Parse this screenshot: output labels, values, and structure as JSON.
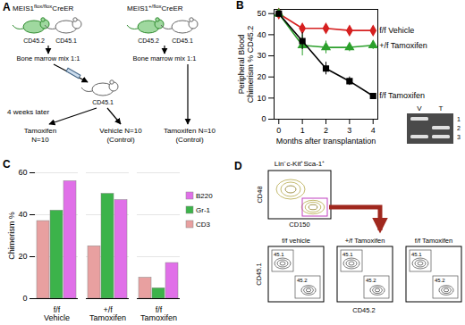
{
  "chart_data": [
    {
      "type": "line",
      "title": "B",
      "ylabel": "Peripheral Blood Chimerism % CD45.2",
      "xlabel": "Months after transplantation",
      "x": [
        0,
        1,
        2,
        3,
        4
      ],
      "xlim": [
        -0.2,
        4.2
      ],
      "xticks": [
        0,
        1,
        2,
        3,
        4
      ],
      "ylim": [
        0,
        52
      ],
      "yticks": [
        0,
        10,
        20,
        30,
        40,
        50
      ],
      "legend": "right",
      "series": [
        {
          "name": "f/f Vehicle",
          "color": "#d62020",
          "marker": "diamond",
          "values": [
            50,
            43,
            43,
            42,
            42
          ],
          "errors": [
            0,
            2,
            2,
            2,
            2
          ]
        },
        {
          "name": "+/f Tamoxifen",
          "color": "#2ca02c",
          "marker": "triangle",
          "values": [
            50,
            35,
            34,
            34,
            35
          ],
          "errors": [
            0,
            5,
            3,
            2,
            2
          ]
        },
        {
          "name": "f/f Tamoxifen",
          "color": "#000000",
          "marker": "square",
          "values": [
            50,
            37,
            24,
            18,
            11
          ],
          "errors": [
            0,
            4,
            3,
            2,
            1
          ]
        }
      ]
    },
    {
      "type": "bar",
      "title": "C",
      "ylabel": "Chimerism %",
      "categories": [
        "f/f Vehicle",
        "+/f Tamoxifen",
        "f/f Tamoxifen"
      ],
      "ylim": [
        0,
        60
      ],
      "yticks": [
        0,
        20,
        40,
        60
      ],
      "grid": true,
      "legend": "right",
      "series": [
        {
          "name": "CD3",
          "color": "#e8a0a0",
          "values": [
            37,
            25,
            10
          ]
        },
        {
          "name": "Gr-1",
          "color": "#3cb34a",
          "values": [
            42,
            50,
            5
          ]
        },
        {
          "name": "B220",
          "color": "#e070e8",
          "values": [
            56,
            47,
            17
          ]
        }
      ]
    }
  ],
  "diagram": {
    "title": "A",
    "donors": [
      {
        "name": "MEIS1",
        "genotype": "flox/flox",
        "suffix": "CreER",
        "mice": [
          "CD45.2",
          "CD45.1"
        ],
        "mix": "Bone marrow mix 1:1"
      },
      {
        "name": "MEIS1",
        "genotype": "+/flox",
        "suffix": "CreER",
        "mice": [
          "CD45.2",
          "CD45.1"
        ],
        "mix": "Bone marrow mix 1:1"
      }
    ],
    "recipient": "CD45.1",
    "interval": "4 weeks later",
    "groups": [
      [
        "Tamoxifen",
        "N=10"
      ],
      [
        "Vehicle N=10",
        "(Control)"
      ],
      [
        "Tamoxifen N=10",
        "(Control)"
      ]
    ]
  },
  "gel": {
    "lanes": [
      "V",
      "T"
    ],
    "bands": [
      {
        "label": 1,
        "lanes": [
          "V"
        ]
      },
      {
        "label": 2,
        "lanes": [
          "T"
        ]
      },
      {
        "label": 3,
        "lanes": [
          "V",
          "T"
        ]
      }
    ]
  },
  "flow": {
    "title": "D",
    "gate": {
      "title": "Lin⁻c-Kit⁺Sca-1⁺",
      "x": "CD150",
      "y": "CD48"
    },
    "plots": [
      "f/f vehicle",
      "+/f Tamoxifen",
      "f/f Tamoxifen"
    ],
    "x": "CD45.2",
    "y": "CD45.1",
    "gates": [
      "45.1",
      "45.2"
    ]
  }
}
